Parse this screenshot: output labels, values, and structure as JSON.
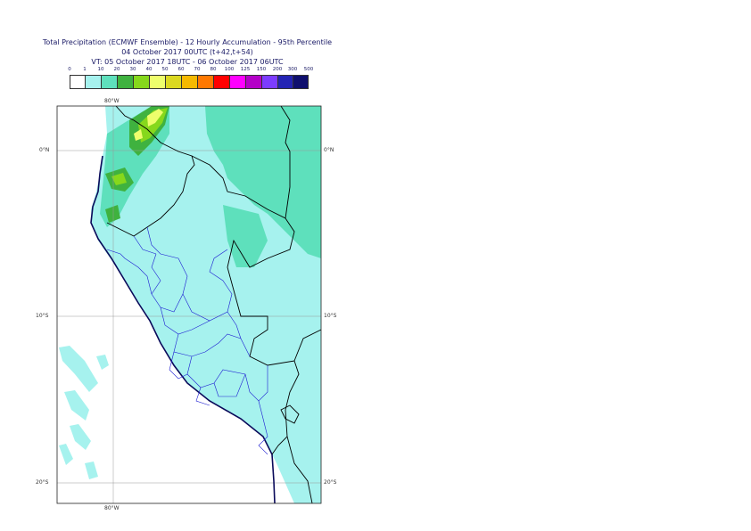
{
  "title": {
    "line1": "Total Precipitation (ECMWF Ensemble) - 12 Hourly Accumulation - 95th Percentile",
    "line2": "04 October 2017 00UTC (t+42,t+54)",
    "line3": "VT: 05 October 2017 18UTC - 06 October 2017 06UTC"
  },
  "legend": {
    "labels": [
      "0",
      "1",
      "10",
      "20",
      "30",
      "40",
      "50",
      "60",
      "70",
      "80",
      "100",
      "125",
      "150",
      "200",
      "300",
      "500"
    ],
    "colors": [
      "#ffffff",
      "#a6f2ee",
      "#5ee0bc",
      "#3fb23f",
      "#86d81c",
      "#eefe6c",
      "#dbd820",
      "#f5b900",
      "#ff7800",
      "#ff0000",
      "#ff00ff",
      "#b400c8",
      "#7c3cff",
      "#2424b4",
      "#0f0f6e"
    ]
  },
  "map": {
    "axis_labels": {
      "lon_top": "80°W",
      "lon_bottom": "80°W",
      "lat_0_left": "0°N",
      "lat_0_right": "0°N",
      "lat_10_left": "10°S",
      "lat_10_right": "10°S",
      "lat_20_left": "20°S",
      "lat_20_right": "20°S"
    },
    "colors": {
      "light_rain": "#a6f2ee",
      "moderate_rain": "#5ee0bc",
      "heavy_rain": "#3fb23f",
      "very_heavy": "#86d81c",
      "peak": "#eefe6c",
      "coastline": "#0a0a5a",
      "borders": "#000000",
      "regions": "#1e1ed2",
      "gridlines": "#999999"
    }
  }
}
